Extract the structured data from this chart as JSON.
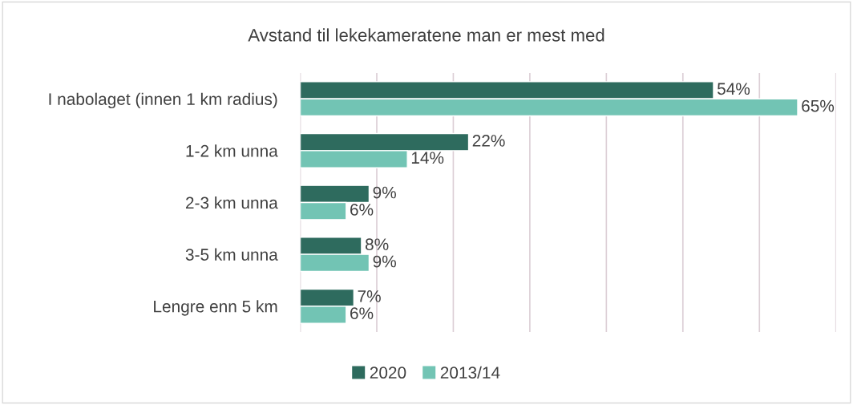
{
  "chart_data": {
    "type": "bar",
    "orientation": "horizontal",
    "title": "Avstand til lekekameratene man er mest med",
    "categories": [
      "I nabolaget (innen 1 km radius)",
      "1-2 km unna",
      "2-3 km unna",
      "3-5 km unna",
      "Lengre enn 5 km"
    ],
    "series": [
      {
        "name": "2020",
        "color": "#2e6b5e",
        "values": [
          54,
          22,
          9,
          8,
          7
        ],
        "value_labels": [
          "54%",
          "22%",
          "9%",
          "8%",
          "7%"
        ]
      },
      {
        "name": "2013/14",
        "color": "#72c4b4",
        "values": [
          65,
          14,
          6,
          9,
          6
        ],
        "value_labels": [
          "65%",
          "14%",
          "6%",
          "9%",
          "6%"
        ]
      }
    ],
    "xlim": [
      0,
      70
    ],
    "xticks": [
      {
        "value": 0,
        "label": null
      },
      {
        "value": 10,
        "label": null
      },
      {
        "value": 20,
        "label": null
      },
      {
        "value": 30,
        "label": null
      },
      {
        "value": 40,
        "label": null
      },
      {
        "value": 50,
        "label": null
      },
      {
        "value": 60,
        "label": null
      },
      {
        "value": 70,
        "label": null
      }
    ],
    "grid": "x",
    "legend": "bottom",
    "tick_labels": "y"
  }
}
